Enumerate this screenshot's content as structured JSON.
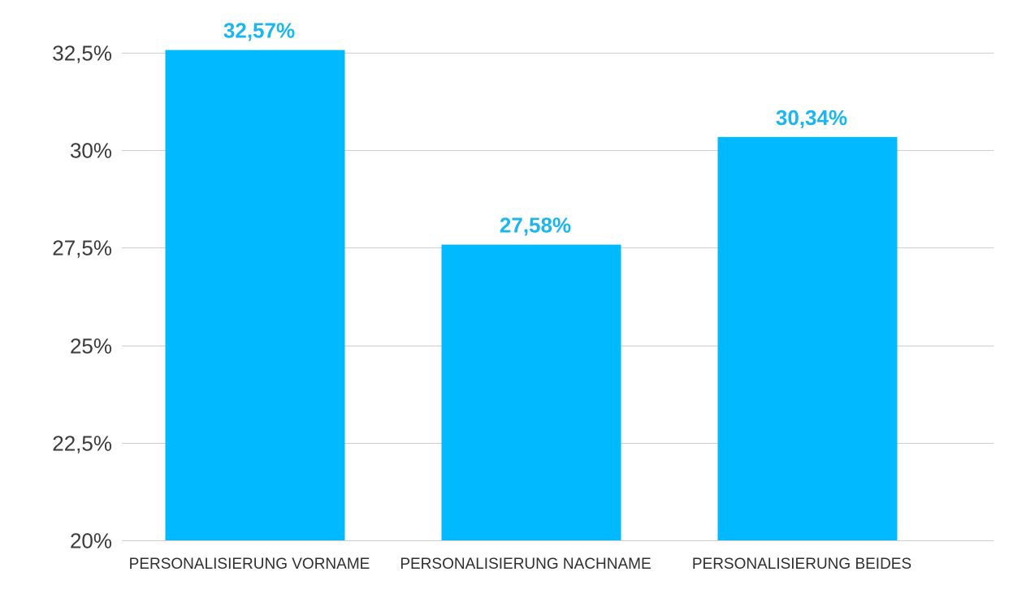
{
  "chart_data": {
    "type": "bar",
    "categories": [
      "PERSONALISIERUNG VORNAME",
      "PERSONALISIERUNG NACHNAME",
      "PERSONALISIERUNG BEIDES"
    ],
    "values": [
      32.57,
      27.58,
      30.34
    ],
    "data_labels": [
      "32,57%",
      "27,58%",
      "30,34%"
    ],
    "ylim": [
      20,
      32.5
    ],
    "yticks": [
      20,
      22.5,
      25,
      27.5,
      30,
      32.5
    ],
    "ytick_labels": [
      "20%",
      "22,5%",
      "25%",
      "27,5%",
      "30%",
      "32,5%"
    ],
    "title": "",
    "xlabel": "",
    "ylabel": "",
    "grid": true,
    "legend": "none",
    "colors": {
      "bar": "#00B9FF",
      "data_label": "#1BB5F0",
      "gridline": "#CFCFCF",
      "tick_label": "#3A3A3A"
    }
  }
}
